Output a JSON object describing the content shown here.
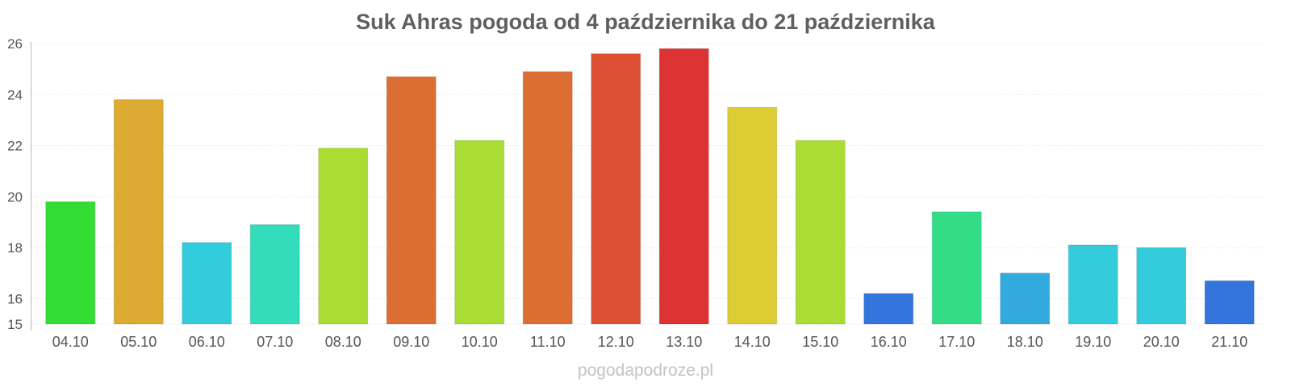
{
  "chart_data": {
    "type": "bar",
    "title": "Suk Ahras pogoda od 4 października do 21 października",
    "categories": [
      "04.10",
      "05.10",
      "06.10",
      "07.10",
      "08.10",
      "09.10",
      "10.10",
      "11.10",
      "12.10",
      "13.10",
      "14.10",
      "15.10",
      "16.10",
      "17.10",
      "18.10",
      "19.10",
      "20.10",
      "21.10"
    ],
    "values": [
      19.8,
      23.8,
      18.2,
      18.9,
      21.9,
      24.7,
      22.2,
      24.9,
      25.6,
      25.8,
      23.5,
      22.2,
      16.2,
      19.4,
      17.0,
      18.1,
      18.0,
      16.7
    ],
    "colors": [
      "#33dd33",
      "#ddaa33",
      "#33ccdd",
      "#33ddbb",
      "#aadd33",
      "#dd6e33",
      "#aadd33",
      "#dd6e33",
      "#dd5033",
      "#dd3333",
      "#ddcc33",
      "#aadd33",
      "#3374dd",
      "#33dd88",
      "#33aadd",
      "#33ccdd",
      "#33ccdd",
      "#3374dd"
    ],
    "ylim": [
      15,
      26
    ],
    "yticks": [
      15,
      16,
      18,
      20,
      22,
      24,
      26
    ],
    "grid": true,
    "legend": "none"
  },
  "watermark": "pogodapodroze.pl"
}
